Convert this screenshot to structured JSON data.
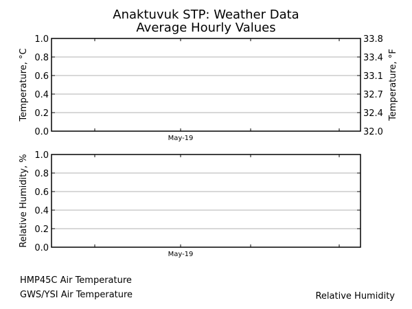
{
  "title": "Anaktuvuk STP: Weather Data",
  "subtitle": "Average Hourly Values",
  "chart_data": [
    {
      "type": "line",
      "ylabel": "Temperature, °C",
      "ylabel_right": "Temperature, °F",
      "ylim": [
        0.0,
        1.0
      ],
      "yticks": [
        "0.0",
        "0.2",
        "0.4",
        "0.6",
        "0.8",
        "1.0"
      ],
      "yticks_right": [
        "32.0",
        "32.4",
        "32.7",
        "33.1",
        "33.4",
        "33.8"
      ],
      "xtick_label": "May-19",
      "grid": true,
      "series": [
        {
          "name": "HMP45C Air Temperature",
          "values": []
        },
        {
          "name": "GWS/YSI Air Temperature",
          "values": []
        }
      ]
    },
    {
      "type": "line",
      "ylabel": "Relative Humidity, %",
      "ylim": [
        0.0,
        1.0
      ],
      "yticks": [
        "0.0",
        "0.2",
        "0.4",
        "0.6",
        "0.8",
        "1.0"
      ],
      "xtick_label": "May-19",
      "grid": true,
      "series": [
        {
          "name": "Relative Humidity",
          "values": []
        }
      ]
    }
  ],
  "colors": {
    "axis": "#000000",
    "grid": "#b0b0b0",
    "background": "#ffffff"
  }
}
